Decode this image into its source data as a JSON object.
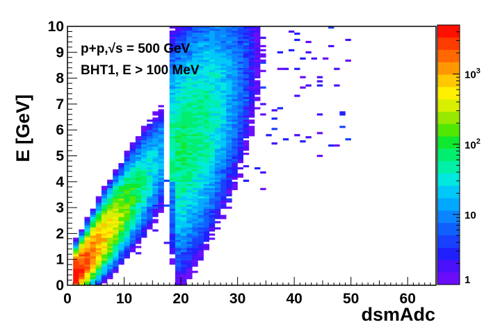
{
  "chart_data": {
    "type": "heatmap",
    "xlabel": "dsmAdc",
    "ylabel": "E [GeV]",
    "xlim": [
      0,
      65
    ],
    "ylim": [
      0,
      10
    ],
    "x_ticks": [
      "0",
      "10",
      "20",
      "30",
      "40",
      "50",
      "60"
    ],
    "y_ticks": [
      "0",
      "1",
      "2",
      "3",
      "4",
      "5",
      "6",
      "7",
      "8",
      "9",
      "10"
    ],
    "annotations": [
      "p+p,√s = 500 GeV",
      "BHT1, E > 100 MeV"
    ],
    "z_scale": "log",
    "zlim": [
      1,
      5000
    ],
    "z_ticks": [
      {
        "value": 1,
        "base": "1",
        "exp": ""
      },
      {
        "value": 10,
        "base": "10",
        "exp": ""
      },
      {
        "value": 100,
        "base": "10",
        "exp": "2"
      },
      {
        "value": 1000,
        "base": "10",
        "exp": "3"
      }
    ],
    "palette": [
      "#6a0dfb",
      "#4a10fa",
      "#2020ff",
      "#1840ff",
      "#1060ff",
      "#0a84ff",
      "#00a8ff",
      "#00c8f8",
      "#00e8e0",
      "#00f0a8",
      "#00ee70",
      "#10e830",
      "#50e800",
      "#98e800",
      "#d8ef00",
      "#fff000",
      "#ffc800",
      "#ff9800",
      "#ff6800",
      "#ff3c00",
      "#ff1000"
    ],
    "structure": {
      "main_band": {
        "adc": [
          1,
          17
        ],
        "energy_per_adc": 0.295,
        "energy_width": 0.45,
        "peak_adc": 2,
        "peak_count": 4500
      },
      "upper_band": {
        "adc": [
          18,
          40
        ],
        "energy_per_adc": 0.265,
        "energy_width": 1.8,
        "center_adc": 21,
        "center_energy": 5.3,
        "peak_count": 60
      },
      "sparse_tail": {
        "adc": [
          2,
          50
        ],
        "energy": [
          0,
          10
        ]
      }
    }
  }
}
